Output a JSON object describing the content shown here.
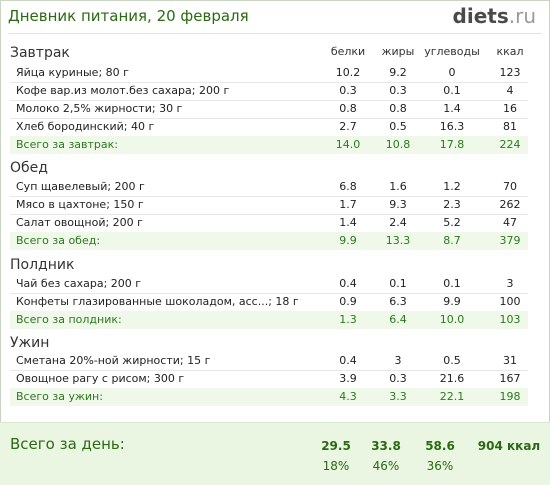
{
  "header": {
    "title": "Дневник питания, 20 февраля",
    "logo_main": "diets",
    "logo_tld": ".ru"
  },
  "columns": {
    "protein": "белки",
    "fat": "жиры",
    "carbs": "углеводы",
    "kcal": "ккал"
  },
  "sections": [
    {
      "title": "Завтрак",
      "items": [
        {
          "name": "Яйца куриные; 80 г",
          "protein": "10.2",
          "fat": "9.2",
          "carbs": "0",
          "kcal": "123"
        },
        {
          "name": "Кофе вар.из молот.без сахара; 200 г",
          "protein": "0.3",
          "fat": "0.3",
          "carbs": "0.1",
          "kcal": "4"
        },
        {
          "name": "Молоко 2,5% жирности; 30 г",
          "protein": "0.8",
          "fat": "0.8",
          "carbs": "1.4",
          "kcal": "16"
        },
        {
          "name": "Хлеб бородинский; 40 г",
          "protein": "2.7",
          "fat": "0.5",
          "carbs": "16.3",
          "kcal": "81"
        }
      ],
      "total": {
        "name": "Всего за завтрак:",
        "protein": "14.0",
        "fat": "10.8",
        "carbs": "17.8",
        "kcal": "224"
      }
    },
    {
      "title": "Обед",
      "items": [
        {
          "name": "Суп щавелевый; 200 г",
          "protein": "6.8",
          "fat": "1.6",
          "carbs": "1.2",
          "kcal": "70"
        },
        {
          "name": "Мясо в цахтоне; 150 г",
          "protein": "1.7",
          "fat": "9.3",
          "carbs": "2.3",
          "kcal": "262"
        },
        {
          "name": "Салат овощной; 200 г",
          "protein": "1.4",
          "fat": "2.4",
          "carbs": "5.2",
          "kcal": "47"
        }
      ],
      "total": {
        "name": "Всего за обед:",
        "protein": "9.9",
        "fat": "13.3",
        "carbs": "8.7",
        "kcal": "379"
      }
    },
    {
      "title": "Полдник",
      "items": [
        {
          "name": "Чай без сахара; 200 г",
          "protein": "0.4",
          "fat": "0.1",
          "carbs": "0.1",
          "kcal": "3"
        },
        {
          "name": "Конфеты глазированные шоколадом, асс...; 18 г",
          "protein": "0.9",
          "fat": "6.3",
          "carbs": "9.9",
          "kcal": "100"
        }
      ],
      "total": {
        "name": "Всего за полдник:",
        "protein": "1.3",
        "fat": "6.4",
        "carbs": "10.0",
        "kcal": "103"
      }
    },
    {
      "title": "Ужин",
      "items": [
        {
          "name": "Сметана 20%-ной жирности; 15 г",
          "protein": "0.4",
          "fat": "3",
          "carbs": "0.5",
          "kcal": "31"
        },
        {
          "name": "Овощное рагу с рисом; 300 г",
          "protein": "3.9",
          "fat": "0.3",
          "carbs": "21.6",
          "kcal": "167"
        }
      ],
      "total": {
        "name": "Всего за ужин:",
        "protein": "4.3",
        "fat": "3.3",
        "carbs": "22.1",
        "kcal": "198"
      }
    }
  ],
  "day_total": {
    "label": "Всего за день:",
    "protein": "29.5",
    "fat": "33.8",
    "carbs": "58.6",
    "kcal": "904 ккал",
    "protein_pct": "18%",
    "fat_pct": "46%",
    "carbs_pct": "36%"
  },
  "colors": {
    "accent": "#2a6a12",
    "total_bg": "#f0f8ea",
    "day_bg": "#eaf6e1"
  }
}
